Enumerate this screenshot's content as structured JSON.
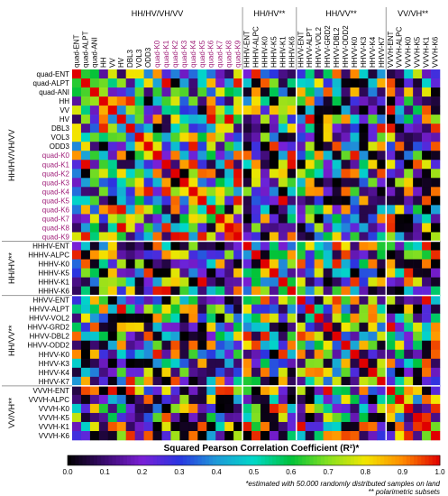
{
  "chart_data": {
    "type": "heatmap",
    "labels": [
      "quad-ENT",
      "quad-ALPT",
      "quad-ANI",
      "HH",
      "VV",
      "HV",
      "DBL3",
      "VOL3",
      "ODD3",
      "quad-K0",
      "quad-K1",
      "quad-K2",
      "quad-K3",
      "quad-K4",
      "quad-K5",
      "quad-K6",
      "quad-K7",
      "quad-K8",
      "quad-K9",
      "HHHV-ENT",
      "HHHV-ALPC",
      "HHHV-K0",
      "HHHV-K5",
      "HHHV-K1",
      "HHHV-K6",
      "HHVV-ENT",
      "HHVV-ALPT",
      "HHVV-VOL2",
      "HHVV-GRD2",
      "HHVV-DBL2",
      "HHVV-ODD2",
      "HHVV-K0",
      "HHVV-K3",
      "HHVV-K4",
      "HHVV-K7",
      "VVVH-ENT",
      "VVVH-ALPC",
      "VVVH-K0",
      "VVVH-K5",
      "VVVH-K1",
      "VVVH-K6"
    ],
    "pink_labels": [
      "quad-K0",
      "quad-K1",
      "quad-K2",
      "quad-K3",
      "quad-K4",
      "quad-K5",
      "quad-K6",
      "quad-K7",
      "quad-K8",
      "quad-K9"
    ],
    "groups": [
      {
        "name": "HH/HV/VH/VV",
        "start": 0,
        "end": 18
      },
      {
        "name": "HH/HV**",
        "start": 19,
        "end": 24
      },
      {
        "name": "HH/VV**",
        "start": 25,
        "end": 34
      },
      {
        "name": "VV/VH**",
        "start": 35,
        "end": 40
      }
    ],
    "colorbar": {
      "title": "Squared Pearson Correlation Coefficient (R²)*",
      "ticks": [
        "0.0",
        "0.1",
        "0.2",
        "0.3",
        "0.4",
        "0.5",
        "0.6",
        "0.7",
        "0.8",
        "0.9",
        "1.0"
      ],
      "range": [
        0,
        1
      ]
    },
    "footnotes": [
      "*estimated with 50.000 randomly distributed samples on land",
      "** polarimetric subsets"
    ],
    "colors": {
      "stops": [
        [
          0.0,
          "#000000"
        ],
        [
          0.1,
          "#3a0a6e"
        ],
        [
          0.2,
          "#7a1fd6"
        ],
        [
          0.3,
          "#2a35e0"
        ],
        [
          0.4,
          "#1f9ad8"
        ],
        [
          0.5,
          "#00d8c8"
        ],
        [
          0.6,
          "#00c23a"
        ],
        [
          0.7,
          "#86e020"
        ],
        [
          0.8,
          "#f2e600"
        ],
        [
          0.9,
          "#ff8a00"
        ],
        [
          1.0,
          "#e00000"
        ]
      ]
    }
  }
}
